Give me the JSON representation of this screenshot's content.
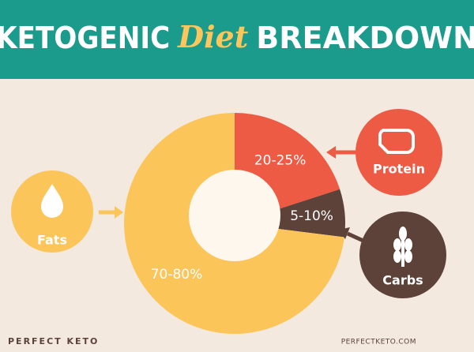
{
  "chart_data": {
    "type": "pie",
    "title": [
      "KETOGENIC",
      "Diet",
      "BREAKDOWN"
    ],
    "categories": [
      "Protein",
      "Carbs",
      "Fats"
    ],
    "values": [
      20,
      7,
      73
    ],
    "value_labels": [
      "20-25%",
      "5-10%",
      "70-80%"
    ],
    "colors": [
      "#ee5b45",
      "#5c4239",
      "#fcc55a"
    ]
  },
  "footer": {
    "brand": "PERFECT KETO",
    "url": "PERFECTKETO.COM"
  }
}
